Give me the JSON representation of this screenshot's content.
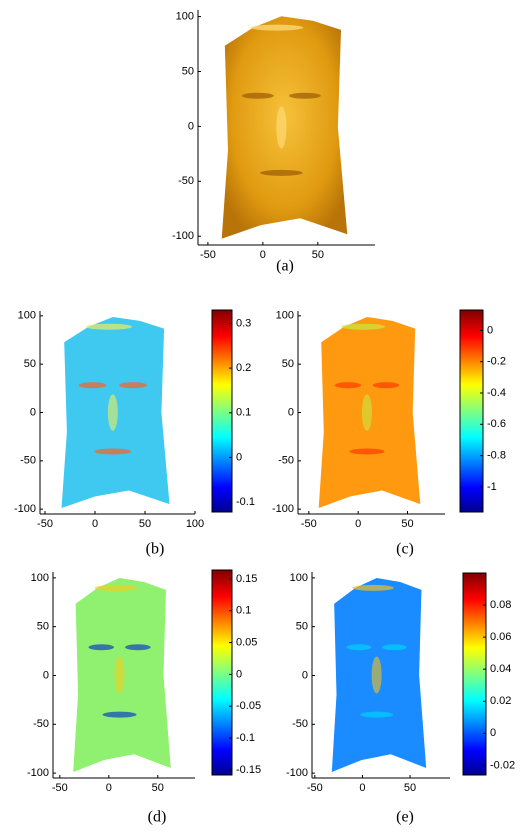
{
  "panels": [
    {
      "caption": "(a)",
      "xticks": [
        -50,
        0,
        50
      ],
      "yticks": [
        100,
        50,
        0,
        -50,
        -100
      ],
      "xlim": [
        -59,
        102
      ],
      "ylim": [
        -108,
        106
      ]
    },
    {
      "caption": "(b)",
      "xticks": [
        -50,
        0,
        50,
        100
      ],
      "yticks": [
        100,
        50,
        0,
        -50,
        -100
      ],
      "xlim": [
        -55,
        100
      ],
      "ylim": [
        -105,
        105
      ],
      "colorbar": {
        "ticks": [
          0.3,
          0.2,
          0.1,
          0,
          -0.1
        ],
        "lim": [
          -0.122,
          0.33
        ]
      }
    },
    {
      "caption": "(c)",
      "xticks": [
        -50,
        0,
        50
      ],
      "yticks": [
        100,
        50,
        0,
        -50,
        -100
      ],
      "xlim": [
        -61,
        88
      ],
      "ylim": [
        -105,
        105
      ],
      "colorbar": {
        "ticks": [
          0,
          -0.2,
          -0.4,
          -0.6,
          -0.8,
          -1
        ],
        "lim": [
          -1.16,
          0.13
        ]
      }
    },
    {
      "caption": "(d)",
      "xticks": [
        -50,
        0,
        50
      ],
      "yticks": [
        100,
        50,
        0,
        -50,
        -100
      ],
      "xlim": [
        -57,
        88
      ],
      "ylim": [
        -105,
        106
      ],
      "colorbar": {
        "ticks": [
          0.15,
          0.1,
          0.05,
          0,
          -0.05,
          -0.1,
          -0.15
        ],
        "lim": [
          -0.158,
          0.164
        ]
      }
    },
    {
      "caption": "(e)",
      "xticks": [
        -50,
        0,
        50
      ],
      "yticks": [
        100,
        50,
        0,
        -50,
        -100
      ],
      "xlim": [
        -53,
        92
      ],
      "ylim": [
        -105,
        106
      ],
      "colorbar": {
        "ticks": [
          0.08,
          0.06,
          0.04,
          0.02,
          0,
          -0.02
        ],
        "lim": [
          -0.026,
          0.1
        ]
      }
    }
  ]
}
